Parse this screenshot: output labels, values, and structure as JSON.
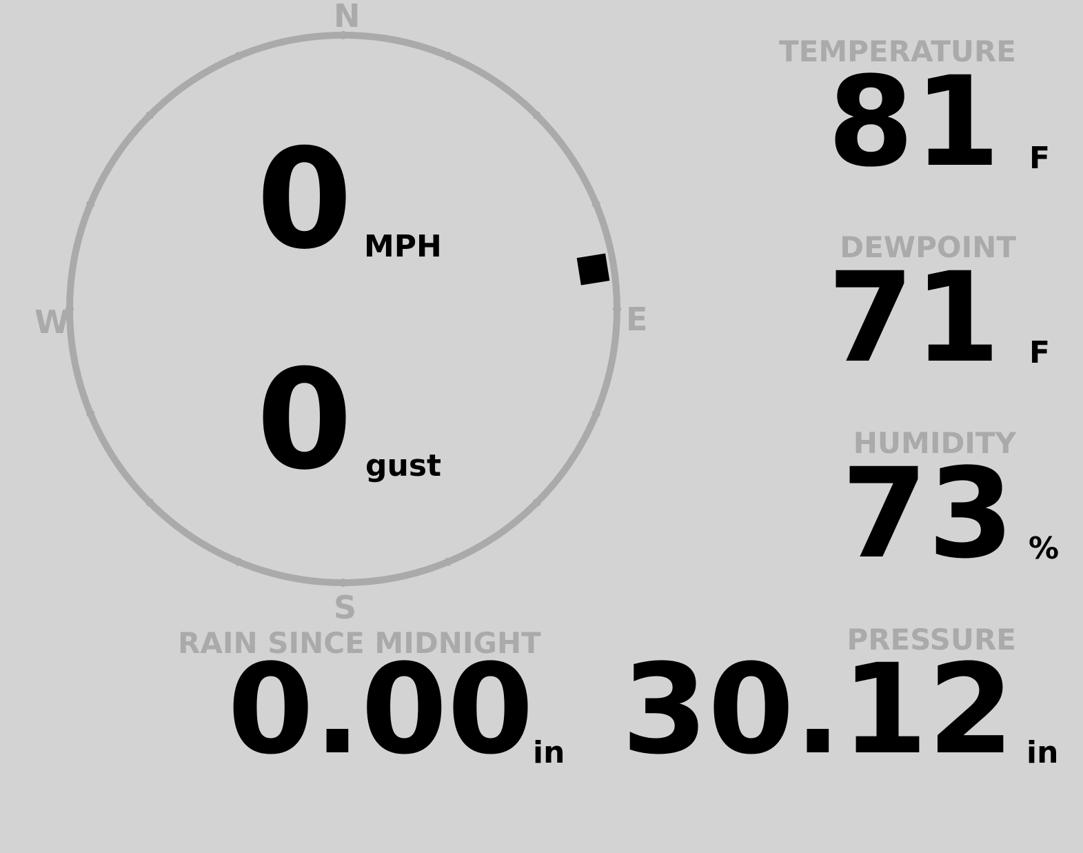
{
  "compass": {
    "north": "N",
    "south": "S",
    "east": "E",
    "west": "W",
    "wind_direction_deg": 81,
    "ring_color": "#aaaaaa"
  },
  "wind": {
    "speed": "0",
    "speed_unit": "MPH",
    "gust": "0",
    "gust_unit": "gust"
  },
  "temperature": {
    "label": "TEMPERATURE",
    "value": "81",
    "unit": "F"
  },
  "dewpoint": {
    "label": "DEWPOINT",
    "value": "71",
    "unit": "F"
  },
  "humidity": {
    "label": "HUMIDITY",
    "value": "73",
    "unit": "%"
  },
  "rain": {
    "label": "RAIN SINCE MIDNIGHT",
    "value": "0.00",
    "unit": "in"
  },
  "pressure": {
    "label": "PRESSURE",
    "value": "30.12",
    "unit": "in"
  },
  "colors": {
    "background": "#d3d3d3",
    "label": "#aaaaaa",
    "value": "#000000"
  }
}
